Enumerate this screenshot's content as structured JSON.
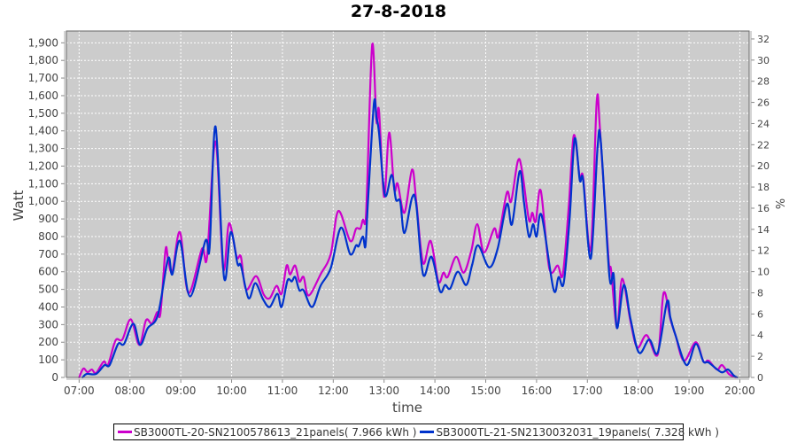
{
  "chart_data": {
    "type": "line",
    "title": "27-8-2018",
    "xlabel": "time",
    "ylabel": "Watt",
    "y2label": "%",
    "xlim": [
      "06:45",
      "20:11"
    ],
    "ylim": [
      0,
      1967
    ],
    "y2lim": [
      0,
      32.75
    ],
    "grid": true,
    "legend_position": "bottom",
    "x_ticks": [
      "07:00",
      "08:00",
      "09:00",
      "10:00",
      "11:00",
      "12:00",
      "13:00",
      "14:00",
      "15:00",
      "16:00",
      "17:00",
      "18:00",
      "19:00",
      "20:00"
    ],
    "y_ticks": [
      "0",
      "100",
      "200",
      "300",
      "400",
      "500",
      "600",
      "700",
      "800",
      "900",
      "1,000",
      "1,100",
      "1,200",
      "1,300",
      "1,400",
      "1,500",
      "1,600",
      "1,700",
      "1,800",
      "1,900"
    ],
    "y2_ticks": [
      "0",
      "2",
      "4",
      "6",
      "8",
      "10",
      "12",
      "14",
      "16",
      "18",
      "20",
      "22",
      "24",
      "26",
      "28",
      "30",
      "32"
    ],
    "colors": {
      "background": "#cccccc",
      "grid": "#ffffff"
    },
    "series": [
      {
        "name": "SB3000TL-20-SN2100578613_21panels( 7.966 kWh )",
        "color": "#cc00cc",
        "points": [
          [
            "07:00",
            0
          ],
          [
            "07:05",
            50
          ],
          [
            "07:10",
            30
          ],
          [
            "07:15",
            45
          ],
          [
            "07:20",
            25
          ],
          [
            "07:29",
            90
          ],
          [
            "07:34",
            70
          ],
          [
            "07:43",
            210
          ],
          [
            "07:51",
            215
          ],
          [
            "08:01",
            330
          ],
          [
            "08:11",
            185
          ],
          [
            "08:19",
            325
          ],
          [
            "08:26",
            305
          ],
          [
            "08:32",
            370
          ],
          [
            "08:36",
            365
          ],
          [
            "08:42",
            725
          ],
          [
            "08:45",
            670
          ],
          [
            "08:50",
            600
          ],
          [
            "08:59",
            825
          ],
          [
            "09:09",
            480
          ],
          [
            "09:25",
            730
          ],
          [
            "09:31",
            685
          ],
          [
            "09:41",
            1340
          ],
          [
            "09:50",
            620
          ],
          [
            "09:57",
            875
          ],
          [
            "10:06",
            685
          ],
          [
            "10:11",
            685
          ],
          [
            "10:17",
            500
          ],
          [
            "10:29",
            575
          ],
          [
            "10:38",
            470
          ],
          [
            "10:45",
            450
          ],
          [
            "10:53",
            520
          ],
          [
            "10:59",
            475
          ],
          [
            "11:05",
            635
          ],
          [
            "11:09",
            585
          ],
          [
            "11:15",
            635
          ],
          [
            "11:20",
            545
          ],
          [
            "11:25",
            570
          ],
          [
            "11:31",
            465
          ],
          [
            "11:45",
            585
          ],
          [
            "11:57",
            700
          ],
          [
            "12:06",
            945
          ],
          [
            "12:20",
            775
          ],
          [
            "12:27",
            845
          ],
          [
            "12:32",
            845
          ],
          [
            "12:35",
            895
          ],
          [
            "12:38",
            880
          ],
          [
            "12:40",
            1085
          ],
          [
            "12:46",
            1890
          ],
          [
            "12:51",
            1455
          ],
          [
            "12:54",
            1515
          ],
          [
            "13:00",
            1025
          ],
          [
            "13:06",
            1390
          ],
          [
            "13:12",
            1070
          ],
          [
            "13:16",
            1100
          ],
          [
            "13:24",
            935
          ],
          [
            "13:33",
            1180
          ],
          [
            "13:38",
            1000
          ],
          [
            "13:46",
            650
          ],
          [
            "13:55",
            775
          ],
          [
            "14:04",
            545
          ],
          [
            "14:10",
            595
          ],
          [
            "14:15",
            570
          ],
          [
            "14:25",
            685
          ],
          [
            "14:34",
            595
          ],
          [
            "14:43",
            720
          ],
          [
            "14:50",
            870
          ],
          [
            "14:58",
            710
          ],
          [
            "15:10",
            845
          ],
          [
            "15:15",
            800
          ],
          [
            "15:25",
            1050
          ],
          [
            "15:30",
            1000
          ],
          [
            "15:38",
            1230
          ],
          [
            "15:43",
            1170
          ],
          [
            "15:51",
            895
          ],
          [
            "15:55",
            935
          ],
          [
            "15:59",
            885
          ],
          [
            "16:05",
            1060
          ],
          [
            "16:15",
            620
          ],
          [
            "16:25",
            635
          ],
          [
            "16:31",
            585
          ],
          [
            "16:38",
            970
          ],
          [
            "16:44",
            1375
          ],
          [
            "16:51",
            1135
          ],
          [
            "16:55",
            1135
          ],
          [
            "17:04",
            725
          ],
          [
            "17:11",
            1565
          ],
          [
            "17:15",
            1400
          ],
          [
            "17:25",
            670
          ],
          [
            "17:28",
            610
          ],
          [
            "17:35",
            280
          ],
          [
            "17:41",
            560
          ],
          [
            "17:51",
            315
          ],
          [
            "17:59",
            170
          ],
          [
            "18:10",
            240
          ],
          [
            "18:23",
            130
          ],
          [
            "18:30",
            480
          ],
          [
            "18:38",
            330
          ],
          [
            "18:44",
            240
          ],
          [
            "18:54",
            95
          ],
          [
            "19:08",
            200
          ],
          [
            "19:17",
            90
          ],
          [
            "19:23",
            95
          ],
          [
            "19:33",
            45
          ],
          [
            "19:39",
            70
          ],
          [
            "19:47",
            20
          ],
          [
            "19:55",
            0
          ]
        ]
      },
      {
        "name": "SB3000TL-21-SN2130032031_19panels( 7.328 kWh )",
        "color": "#0033cc",
        "points": [
          [
            "07:04",
            0
          ],
          [
            "07:09",
            20
          ],
          [
            "07:20",
            20
          ],
          [
            "07:30",
            70
          ],
          [
            "07:36",
            70
          ],
          [
            "07:46",
            190
          ],
          [
            "07:53",
            190
          ],
          [
            "08:04",
            305
          ],
          [
            "08:12",
            185
          ],
          [
            "08:21",
            280
          ],
          [
            "08:33",
            355
          ],
          [
            "08:45",
            675
          ],
          [
            "08:50",
            585
          ],
          [
            "08:59",
            775
          ],
          [
            "09:11",
            460
          ],
          [
            "09:29",
            775
          ],
          [
            "09:34",
            735
          ],
          [
            "09:41",
            1425
          ],
          [
            "09:51",
            570
          ],
          [
            "09:59",
            825
          ],
          [
            "10:07",
            645
          ],
          [
            "10:11",
            635
          ],
          [
            "10:20",
            450
          ],
          [
            "10:28",
            535
          ],
          [
            "10:37",
            445
          ],
          [
            "10:45",
            400
          ],
          [
            "10:54",
            475
          ],
          [
            "10:59",
            400
          ],
          [
            "11:06",
            550
          ],
          [
            "11:11",
            545
          ],
          [
            "11:15",
            570
          ],
          [
            "11:20",
            495
          ],
          [
            "11:25",
            495
          ],
          [
            "11:35",
            400
          ],
          [
            "11:45",
            520
          ],
          [
            "11:57",
            620
          ],
          [
            "12:09",
            850
          ],
          [
            "12:20",
            700
          ],
          [
            "12:27",
            750
          ],
          [
            "12:30",
            745
          ],
          [
            "12:35",
            800
          ],
          [
            "12:38",
            745
          ],
          [
            "12:41",
            1000
          ],
          [
            "12:48",
            1555
          ],
          [
            "12:51",
            1475
          ],
          [
            "12:54",
            1390
          ],
          [
            "13:01",
            1035
          ],
          [
            "13:09",
            1150
          ],
          [
            "13:14",
            1010
          ],
          [
            "13:19",
            1000
          ],
          [
            "13:24",
            820
          ],
          [
            "13:33",
            1020
          ],
          [
            "13:38",
            980
          ],
          [
            "13:46",
            585
          ],
          [
            "13:56",
            685
          ],
          [
            "14:06",
            490
          ],
          [
            "14:12",
            525
          ],
          [
            "14:18",
            505
          ],
          [
            "14:27",
            600
          ],
          [
            "14:37",
            525
          ],
          [
            "14:44",
            640
          ],
          [
            "14:51",
            750
          ],
          [
            "15:04",
            625
          ],
          [
            "15:14",
            730
          ],
          [
            "15:25",
            985
          ],
          [
            "15:31",
            870
          ],
          [
            "15:40",
            1170
          ],
          [
            "15:45",
            1000
          ],
          [
            "15:51",
            800
          ],
          [
            "15:56",
            870
          ],
          [
            "16:00",
            800
          ],
          [
            "16:06",
            920
          ],
          [
            "16:20",
            500
          ],
          [
            "16:26",
            570
          ],
          [
            "16:32",
            535
          ],
          [
            "16:39",
            900
          ],
          [
            "16:45",
            1355
          ],
          [
            "16:51",
            1120
          ],
          [
            "16:55",
            1120
          ],
          [
            "17:04",
            675
          ],
          [
            "17:12",
            1305
          ],
          [
            "17:16",
            1330
          ],
          [
            "17:26",
            575
          ],
          [
            "17:31",
            585
          ],
          [
            "17:35",
            280
          ],
          [
            "17:43",
            525
          ],
          [
            "17:51",
            330
          ],
          [
            "18:01",
            140
          ],
          [
            "18:13",
            215
          ],
          [
            "18:23",
            140
          ],
          [
            "18:34",
            430
          ],
          [
            "18:38",
            340
          ],
          [
            "18:44",
            240
          ],
          [
            "18:57",
            70
          ],
          [
            "19:08",
            190
          ],
          [
            "19:17",
            90
          ],
          [
            "19:23",
            85
          ],
          [
            "19:38",
            30
          ],
          [
            "19:46",
            45
          ],
          [
            "19:53",
            10
          ],
          [
            "19:57",
            0
          ]
        ]
      }
    ]
  }
}
